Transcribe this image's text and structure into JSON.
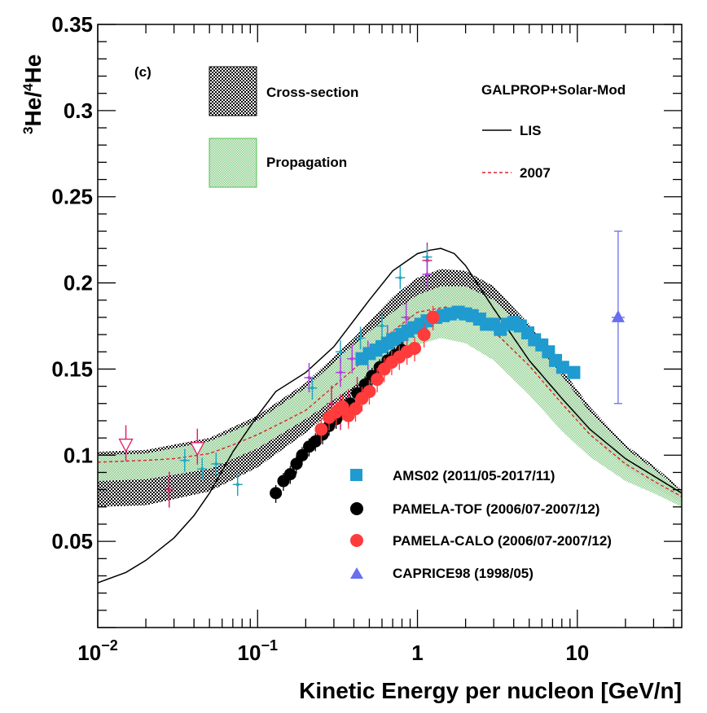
{
  "chart_data": {
    "type": "scatter",
    "panel_label": "(c)",
    "xlabel": "Kinetic Energy per nucleon [GeV/n]",
    "ylabel": {
      "sup1": "3",
      "base1": "He/",
      "sup2": "4",
      "base2": "He"
    },
    "x_scale": "log",
    "xlim": [
      0.01,
      45
    ],
    "ylim": [
      0.0,
      0.35
    ],
    "x_ticks": [
      {
        "value": 0.01,
        "base": "10",
        "exp": "−2"
      },
      {
        "value": 0.1,
        "base": "10",
        "exp": "−1"
      },
      {
        "value": 1,
        "base": "1",
        "exp": ""
      },
      {
        "value": 10,
        "base": "10",
        "exp": ""
      }
    ],
    "y_ticks": [
      {
        "value": 0.05,
        "label": "0.05"
      },
      {
        "value": 0.1,
        "label": "0.1"
      },
      {
        "value": 0.15,
        "label": "0.15"
      },
      {
        "value": 0.2,
        "label": "0.2"
      },
      {
        "value": 0.25,
        "label": "0.25"
      },
      {
        "value": 0.3,
        "label": "0.3"
      },
      {
        "value": 0.35,
        "label": "0.35"
      }
    ],
    "band_legend": {
      "cross_section": "Cross-section",
      "propagation": "Propagation"
    },
    "model_title": "GALPROP+Solar-Mod",
    "line_legend": {
      "lis": "LIS",
      "mod2007": "2007"
    },
    "colors": {
      "ams02": "#1f9bd0",
      "pamela_tof": "#000000",
      "pamela_calo": "#ff3b3b",
      "caprice98": "#6a6ef0",
      "lis": "#000000",
      "mod2007": "#d62728",
      "cross_band": "#000000",
      "prop_band": "#8fd08f",
      "errbar_magenta": "#e0206a",
      "errbar_cyan": "#20a8c0",
      "errbar_purple": "#b040e0"
    },
    "bands": {
      "cross_section": {
        "x": [
          0.01,
          0.02,
          0.05,
          0.1,
          0.2,
          0.4,
          0.7,
          1.0,
          1.4,
          2.0,
          3.0,
          5.0,
          8.0,
          12.0,
          20.0,
          30.0,
          45.0
        ],
        "upper": [
          0.102,
          0.103,
          0.11,
          0.123,
          0.142,
          0.168,
          0.192,
          0.203,
          0.208,
          0.207,
          0.198,
          0.176,
          0.15,
          0.128,
          0.106,
          0.094,
          0.08
        ],
        "lower": [
          0.07,
          0.071,
          0.079,
          0.093,
          0.113,
          0.136,
          0.158,
          0.17,
          0.178,
          0.178,
          0.171,
          0.153,
          0.131,
          0.111,
          0.093,
          0.082,
          0.072
        ]
      },
      "propagation": {
        "x": [
          0.01,
          0.02,
          0.05,
          0.1,
          0.2,
          0.4,
          0.7,
          1.0,
          1.4,
          2.0,
          3.0,
          5.0,
          8.0,
          12.0,
          20.0,
          30.0,
          45.0
        ],
        "upper": [
          0.1,
          0.101,
          0.108,
          0.12,
          0.139,
          0.164,
          0.183,
          0.193,
          0.198,
          0.198,
          0.19,
          0.17,
          0.146,
          0.125,
          0.104,
          0.092,
          0.079
        ],
        "lower": [
          0.085,
          0.086,
          0.092,
          0.104,
          0.121,
          0.14,
          0.156,
          0.164,
          0.168,
          0.165,
          0.155,
          0.135,
          0.114,
          0.099,
          0.085,
          0.078,
          0.07
        ]
      }
    },
    "lines": {
      "lis": {
        "x": [
          0.01,
          0.015,
          0.02,
          0.03,
          0.04,
          0.05,
          0.07,
          0.1,
          0.13,
          0.2,
          0.3,
          0.5,
          0.7,
          1.0,
          1.2,
          1.4,
          1.7,
          2.0,
          3.0,
          5.0,
          8.0,
          12.0,
          20.0,
          30.0,
          45.0
        ],
        "y": [
          0.026,
          0.032,
          0.039,
          0.052,
          0.065,
          0.078,
          0.102,
          0.123,
          0.137,
          0.148,
          0.163,
          0.19,
          0.207,
          0.217,
          0.219,
          0.22,
          0.217,
          0.21,
          0.185,
          0.155,
          0.133,
          0.115,
          0.098,
          0.088,
          0.078
        ]
      },
      "mod2007": {
        "x": [
          0.01,
          0.02,
          0.03,
          0.05,
          0.07,
          0.1,
          0.15,
          0.2,
          0.3,
          0.5,
          0.7,
          1.0,
          1.5,
          2.0,
          3.0,
          5.0,
          8.0,
          12.0,
          20.0,
          30.0,
          45.0
        ],
        "y": [
          0.096,
          0.097,
          0.098,
          0.101,
          0.106,
          0.112,
          0.12,
          0.126,
          0.14,
          0.158,
          0.172,
          0.183,
          0.186,
          0.183,
          0.172,
          0.152,
          0.13,
          0.112,
          0.095,
          0.085,
          0.076
        ]
      }
    },
    "series": [
      {
        "name": "AMS02 (2011/05-2017/11)",
        "marker": "square",
        "x": [
          0.45,
          0.5,
          0.55,
          0.6,
          0.65,
          0.7,
          0.75,
          0.8,
          0.87,
          0.95,
          1.05,
          1.15,
          1.3,
          1.45,
          1.6,
          1.8,
          2.0,
          2.2,
          2.45,
          2.7,
          3.0,
          3.3,
          3.65,
          4.0,
          4.4,
          4.9,
          5.4,
          6.0,
          6.6,
          7.3,
          8.1,
          9.5
        ],
        "y": [
          0.156,
          0.159,
          0.161,
          0.163,
          0.165,
          0.167,
          0.168,
          0.17,
          0.172,
          0.174,
          0.176,
          0.178,
          0.18,
          0.181,
          0.182,
          0.183,
          0.182,
          0.181,
          0.179,
          0.176,
          0.176,
          0.173,
          0.176,
          0.177,
          0.175,
          0.171,
          0.167,
          0.164,
          0.16,
          0.155,
          0.151,
          0.148
        ]
      },
      {
        "name": "PAMELA-TOF (2006/07-2007/12)",
        "marker": "circle",
        "x": [
          0.13,
          0.145,
          0.16,
          0.175,
          0.19,
          0.21,
          0.23,
          0.255,
          0.28,
          0.31,
          0.34,
          0.38,
          0.42,
          0.47,
          0.52,
          0.58,
          0.65,
          0.72,
          0.8
        ],
        "y": [
          0.078,
          0.085,
          0.089,
          0.095,
          0.1,
          0.105,
          0.108,
          0.112,
          0.117,
          0.121,
          0.126,
          0.13,
          0.136,
          0.141,
          0.146,
          0.151,
          0.155,
          0.158,
          0.161
        ]
      },
      {
        "name": "PAMELA-CALO (2006/07-2007/12)",
        "marker": "circle",
        "x": [
          0.25,
          0.28,
          0.31,
          0.34,
          0.37,
          0.41,
          0.45,
          0.5,
          0.56,
          0.62,
          0.69,
          0.77,
          0.86,
          0.96,
          1.1,
          1.25
        ],
        "y": [
          0.115,
          0.122,
          0.125,
          0.128,
          0.123,
          0.127,
          0.133,
          0.137,
          0.144,
          0.15,
          0.154,
          0.157,
          0.16,
          0.162,
          0.17,
          0.18
        ]
      },
      {
        "name": "CAPRICE98 (1998/05)",
        "marker": "triangle",
        "x": [
          18.0
        ],
        "y": [
          0.18
        ]
      }
    ],
    "extra_points": {
      "open_triangles": {
        "x": [
          0.015,
          0.042
        ],
        "y": [
          0.106,
          0.104
        ]
      },
      "magenta_err": {
        "x": [
          0.015,
          0.028,
          0.042,
          0.29,
          0.33,
          0.37,
          0.42,
          1.15
        ],
        "y": [
          0.107,
          0.08,
          0.105,
          0.13,
          0.125,
          0.128,
          0.135,
          0.213
        ]
      },
      "cyan_err": {
        "x": [
          0.035,
          0.045,
          0.055,
          0.075,
          0.22,
          0.33,
          0.44,
          0.6,
          0.78,
          1.15
        ],
        "y": [
          0.097,
          0.092,
          0.095,
          0.083,
          0.139,
          0.16,
          0.168,
          0.175,
          0.203,
          0.215
        ]
      },
      "purple_err": {
        "x": [
          0.21,
          0.33,
          0.39,
          0.49,
          0.65,
          0.85,
          1.15
        ],
        "y": [
          0.145,
          0.148,
          0.156,
          0.158,
          0.167,
          0.18,
          0.205
        ]
      }
    }
  }
}
